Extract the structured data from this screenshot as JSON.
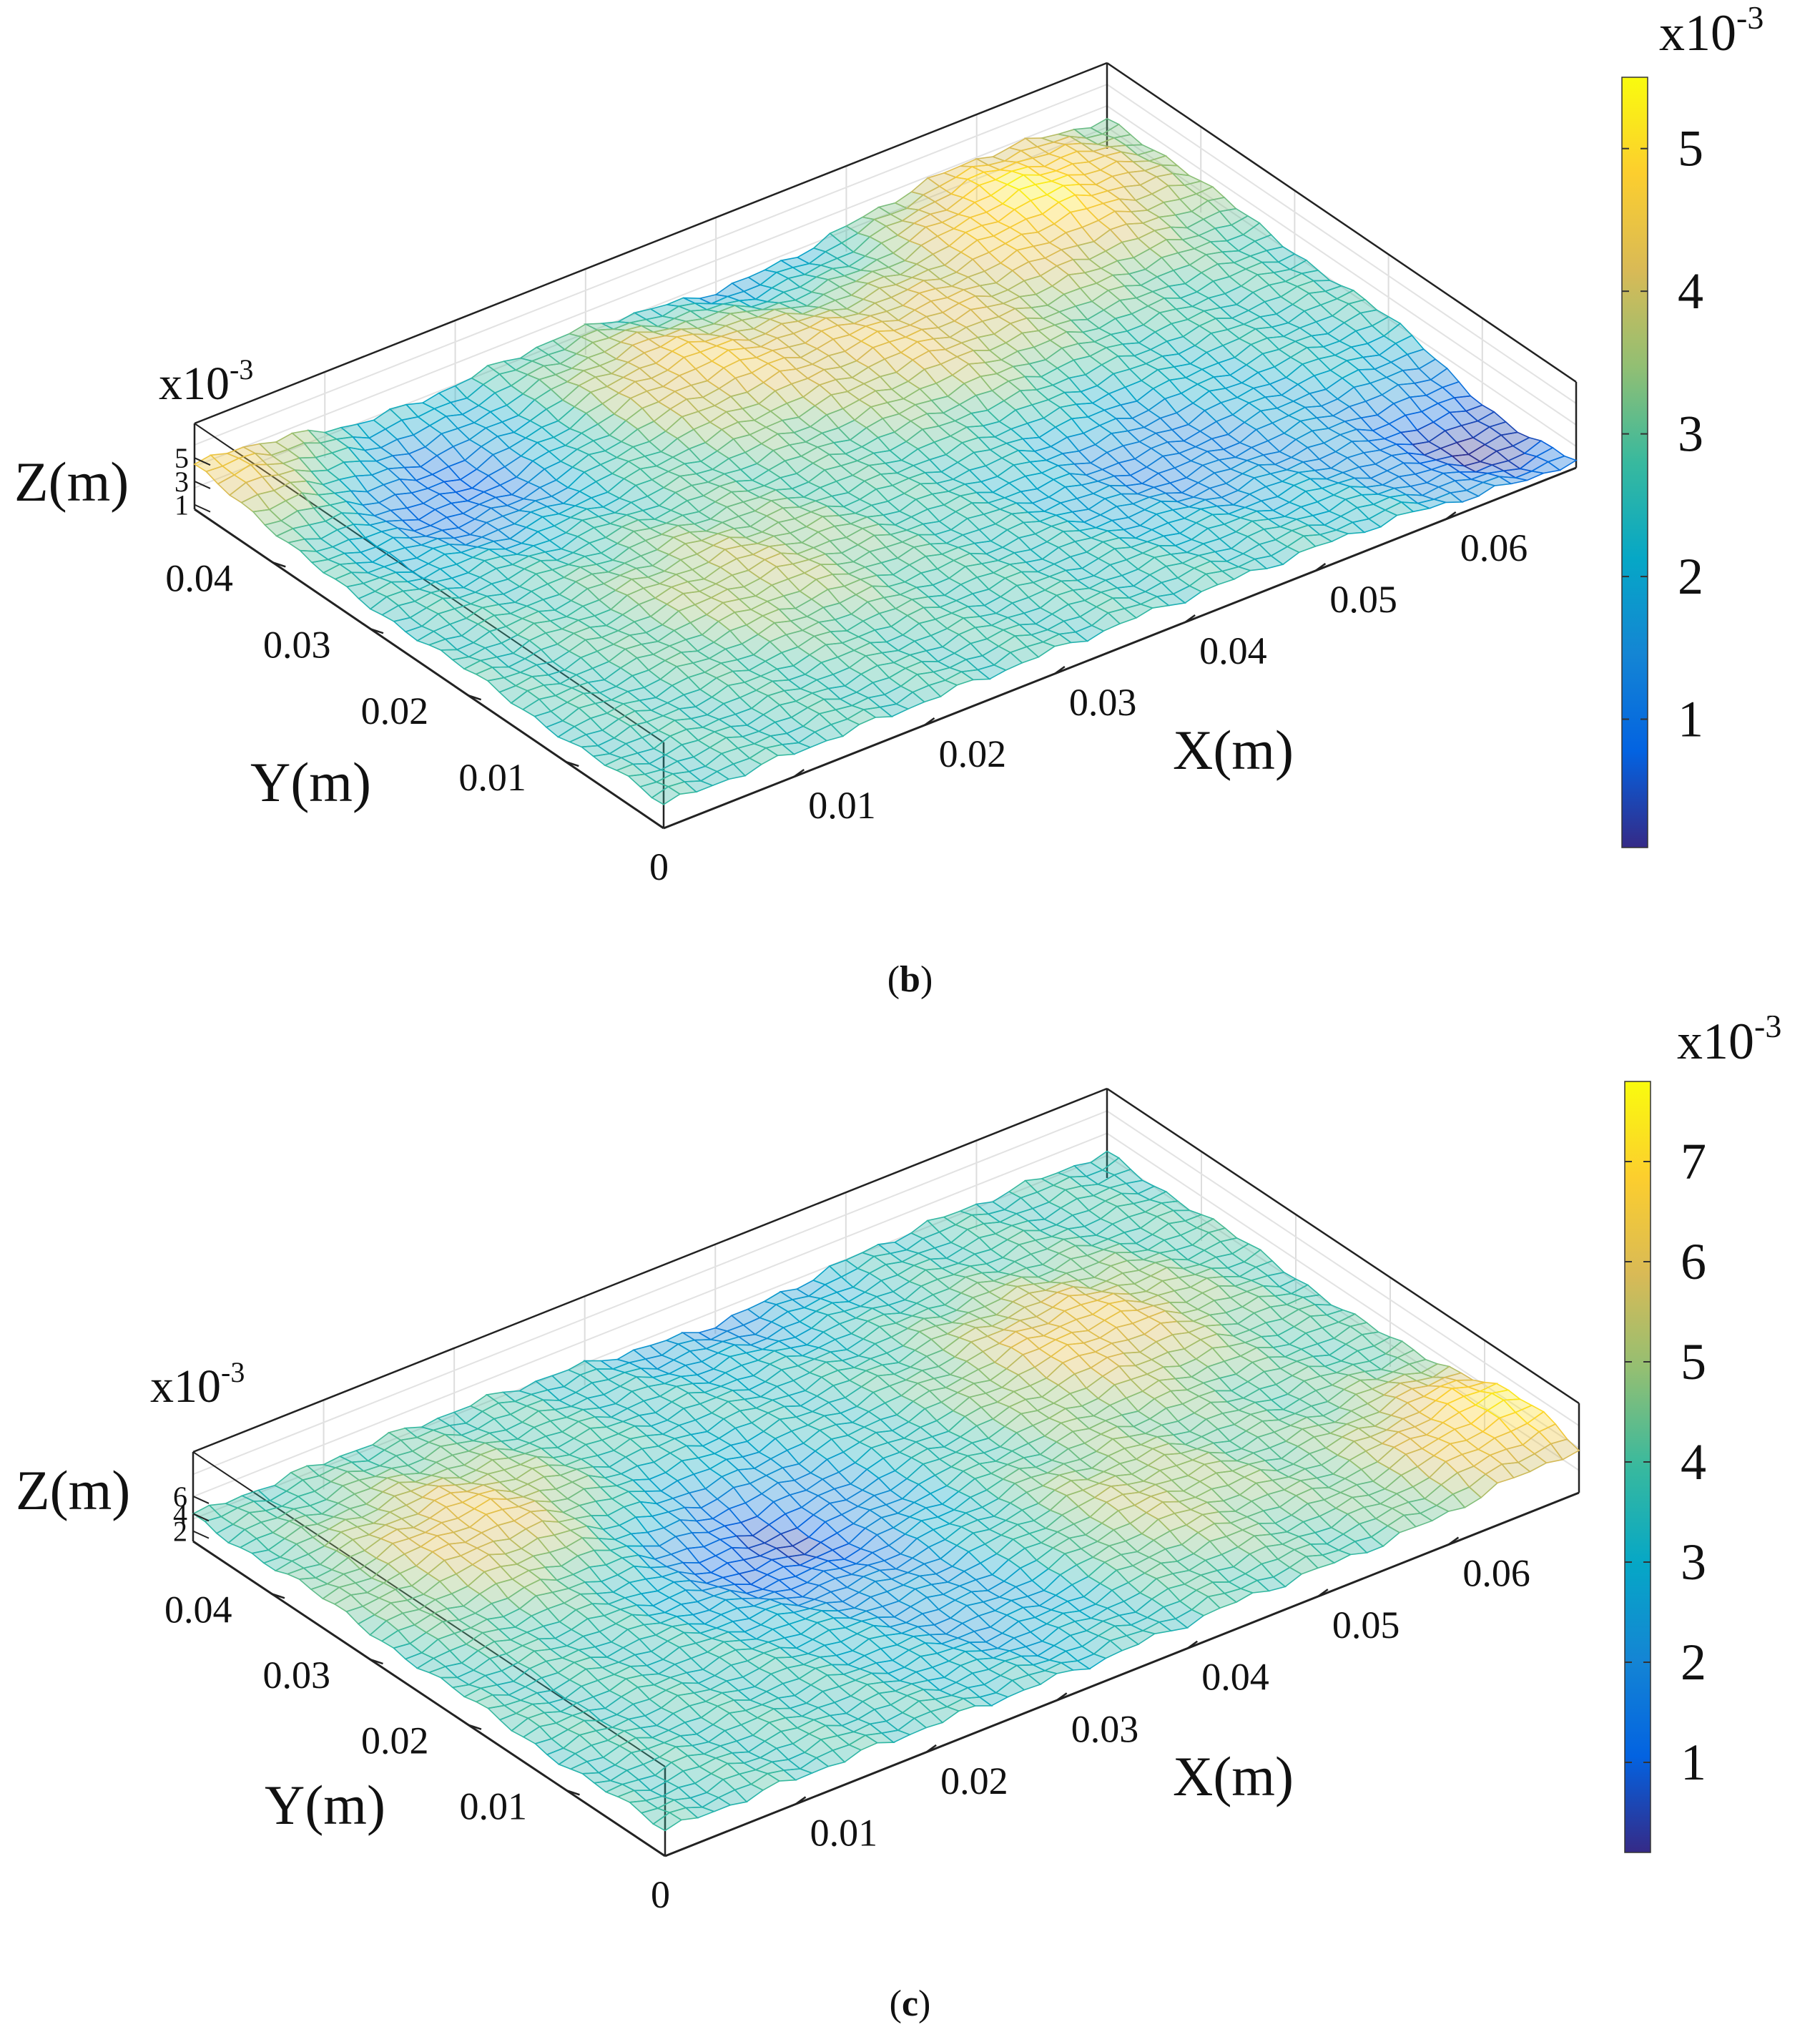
{
  "chart_data": [
    {
      "type": "surface",
      "panel_label": "b",
      "caption_open": "(",
      "caption_close": ")",
      "xlabel": "X(m)",
      "ylabel": "Y(m)",
      "zlabel": "Z(m)",
      "x_ticks": [
        "0",
        "0.01",
        "0.02",
        "0.03",
        "0.04",
        "0.05",
        "0.06"
      ],
      "y_ticks": [
        "0.01",
        "0.02",
        "0.03",
        "0.04"
      ],
      "z_ticks": [
        "1",
        "3",
        "5"
      ],
      "z_exponent": "x10",
      "z_exponent_power": "-3",
      "xlim": [
        0,
        0.07
      ],
      "ylim": [
        0,
        0.048
      ],
      "zlim": [
        0,
        0.0055
      ],
      "colorbar": {
        "ticks": [
          "1",
          "2",
          "3",
          "4",
          "5"
        ],
        "exponent": "x10",
        "exponent_power": "-3",
        "range": [
          0.0001,
          0.0055
        ]
      },
      "colormap": [
        "#352a87",
        "#0363e1",
        "#1485d4",
        "#06a7c6",
        "#38b99e",
        "#92bf73",
        "#d9ba56",
        "#fcce2e",
        "#f9fb0e"
      ],
      "surface_peaks": [
        {
          "x": 0.003,
          "y": 0.046,
          "z": 0.0048
        },
        {
          "x": 0.032,
          "y": 0.04,
          "z": 0.0045
        },
        {
          "x": 0.06,
          "y": 0.042,
          "z": 0.0052
        },
        {
          "x": 0.02,
          "y": 0.018,
          "z": 0.0038
        },
        {
          "x": 0.045,
          "y": 0.033,
          "z": 0.0041
        }
      ],
      "surface_valleys": [
        {
          "x": 0.012,
          "y": 0.04,
          "z": 0.0004
        },
        {
          "x": 0.068,
          "y": 0.006,
          "z": 0.0002
        },
        {
          "x": 0.05,
          "y": 0.015,
          "z": 0.0012
        },
        {
          "x": 0.04,
          "y": 0.05,
          "z": 0.0012
        }
      ]
    },
    {
      "type": "surface",
      "panel_label": "c",
      "caption_open": "(",
      "caption_close": ")",
      "xlabel": "X(m)",
      "ylabel": "Y(m)",
      "zlabel": "Z(m)",
      "x_ticks": [
        "0",
        "0.01",
        "0.02",
        "0.03",
        "0.04",
        "0.05",
        "0.06"
      ],
      "y_ticks": [
        "0.01",
        "0.02",
        "0.03",
        "0.04"
      ],
      "z_ticks": [
        "2",
        "4",
        "6"
      ],
      "z_exponent": "x10",
      "z_exponent_power": "-3",
      "xlim": [
        0,
        0.07
      ],
      "ylim": [
        0,
        0.048
      ],
      "zlim": [
        0,
        0.0078
      ],
      "colorbar": {
        "ticks": [
          "1",
          "2",
          "3",
          "4",
          "5",
          "6",
          "7"
        ],
        "exponent": "x10",
        "exponent_power": "-3",
        "range": [
          0.0001,
          0.0078
        ]
      },
      "colormap": [
        "#352a87",
        "#0363e1",
        "#1485d4",
        "#06a7c6",
        "#38b99e",
        "#92bf73",
        "#d9ba56",
        "#fcce2e",
        "#f9fb0e"
      ],
      "surface_peaks": [
        {
          "x": 0.012,
          "y": 0.035,
          "z": 0.0062
        },
        {
          "x": 0.055,
          "y": 0.03,
          "z": 0.0063
        },
        {
          "x": 0.069,
          "y": 0.006,
          "z": 0.0072
        },
        {
          "x": 0.045,
          "y": 0.012,
          "z": 0.0055
        }
      ],
      "surface_valleys": [
        {
          "x": 0.027,
          "y": 0.025,
          "z": 0.0006
        },
        {
          "x": 0.04,
          "y": 0.05,
          "z": 0.0018
        },
        {
          "x": 0.033,
          "y": 0.01,
          "z": 0.0022
        }
      ]
    }
  ]
}
